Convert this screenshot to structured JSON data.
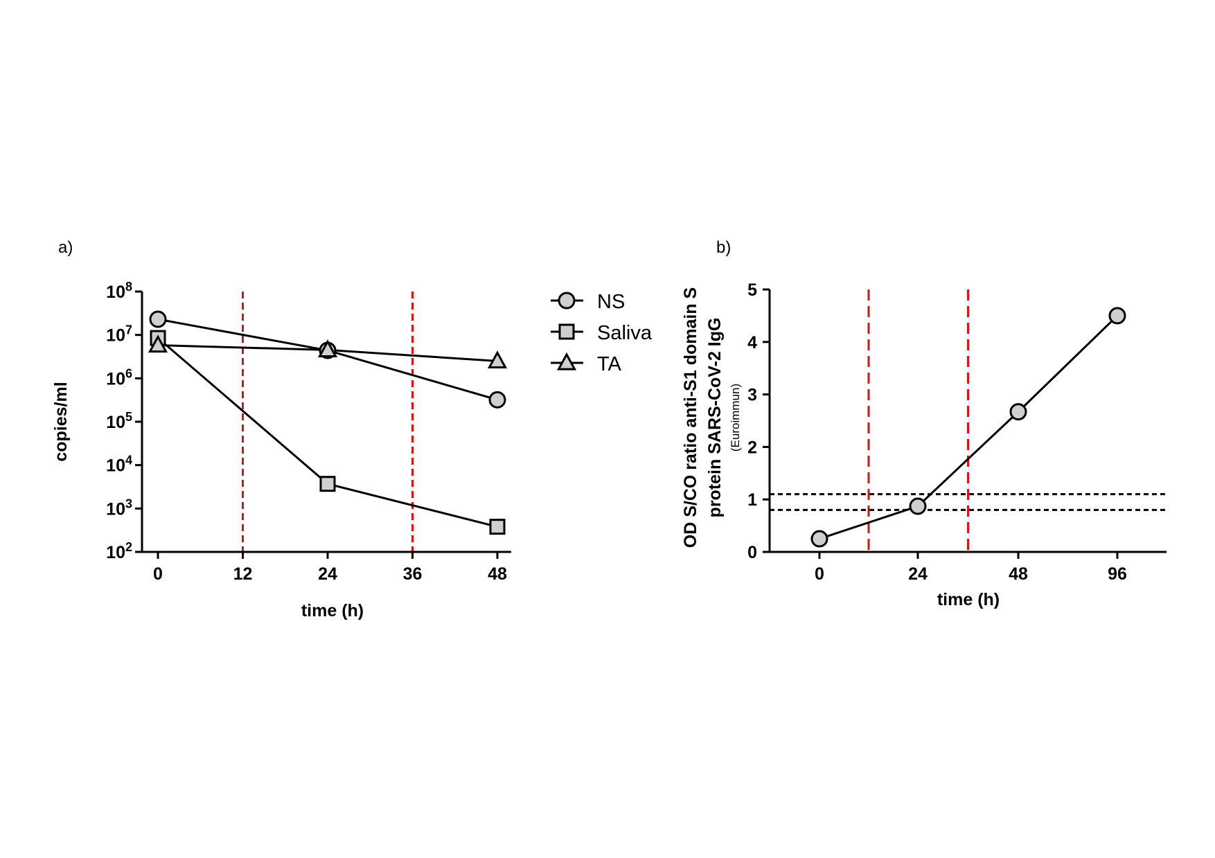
{
  "chart_data": [
    {
      "panel_label": "a)",
      "type": "line",
      "ylabel": "copies/ml",
      "xlabel": "time (h)",
      "yscale": "log",
      "ylim": [
        100,
        100000000
      ],
      "xlim": [
        0,
        48
      ],
      "x_ticks": [
        0,
        12,
        24,
        36,
        48
      ],
      "x_tick_labels": [
        "0",
        "12",
        "24",
        "36",
        "48"
      ],
      "y_tick_exponents": [
        2,
        3,
        4,
        5,
        6,
        7,
        8
      ],
      "y_tick_base": "10",
      "vlines": [
        12,
        36
      ],
      "vline_color": "#dd1111",
      "grid": false,
      "legend_position": "right",
      "series": [
        {
          "name": "NS",
          "marker": "circle",
          "x": [
            0,
            24,
            48
          ],
          "y": [
            23000000,
            4400000,
            320000
          ]
        },
        {
          "name": "Saliva",
          "marker": "square",
          "x": [
            0,
            24,
            48
          ],
          "y": [
            8500000,
            3700,
            380
          ]
        },
        {
          "name": "TA",
          "marker": "triangle",
          "x": [
            0,
            24,
            48
          ],
          "y": [
            5800000,
            4500000,
            2500000
          ]
        }
      ]
    },
    {
      "panel_label": "b)",
      "type": "line",
      "ylabel_lines": [
        "OD S/CO ratio anti-S1 domain S",
        "protein SARS-CoV-2 IgG"
      ],
      "ylabel_sub": "(Euroimmun)",
      "xlabel": "time (h)",
      "ylim": [
        0,
        5
      ],
      "y_ticks": [
        0,
        1,
        2,
        3,
        4,
        5
      ],
      "y_tick_labels": [
        "0",
        "1",
        "2",
        "3",
        "4",
        "5"
      ],
      "categories": [
        "0",
        "24",
        "48",
        "96"
      ],
      "vlines_between": [
        [
          0,
          1
        ],
        [
          1,
          2
        ]
      ],
      "vline_color": "#dd1111",
      "hlines": [
        0.8,
        1.1
      ],
      "grid": false,
      "series": [
        {
          "marker": "circle",
          "values": [
            0.25,
            0.87,
            2.67,
            4.5
          ]
        }
      ]
    }
  ]
}
